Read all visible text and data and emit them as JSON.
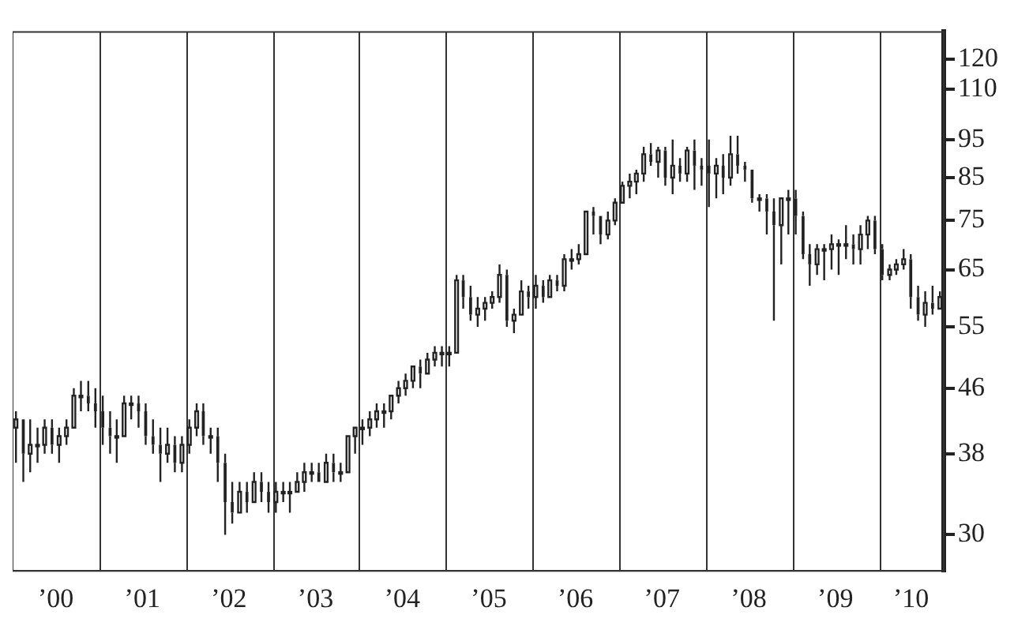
{
  "chart_data": {
    "type": "candlestick",
    "log": true,
    "grid": false,
    "x": [
      "2000-01-15",
      "2000-02-15",
      "2000-03-15",
      "2000-04-15",
      "2000-05-15",
      "2000-06-15",
      "2000-07-15",
      "2000-08-15",
      "2000-09-15",
      "2000-10-15",
      "2000-11-15",
      "2000-12-15",
      "2001-01-15",
      "2001-02-15",
      "2001-03-15",
      "2001-04-15",
      "2001-05-15",
      "2001-06-15",
      "2001-07-15",
      "2001-08-15",
      "2001-09-15",
      "2001-10-15",
      "2001-11-15",
      "2001-12-15",
      "2002-01-15",
      "2002-02-15",
      "2002-03-15",
      "2002-04-15",
      "2002-05-15",
      "2002-06-15",
      "2002-07-15",
      "2002-08-15",
      "2002-09-15",
      "2002-10-15",
      "2002-11-15",
      "2002-12-15",
      "2003-01-15",
      "2003-02-15",
      "2003-03-15",
      "2003-04-15",
      "2003-05-15",
      "2003-06-15",
      "2003-07-15",
      "2003-08-15",
      "2003-09-15",
      "2003-10-15",
      "2003-11-15",
      "2003-12-15",
      "2004-01-15",
      "2004-02-15",
      "2004-03-15",
      "2004-04-15",
      "2004-05-15",
      "2004-06-15",
      "2004-07-15",
      "2004-08-15",
      "2004-09-15",
      "2004-10-15",
      "2004-11-15",
      "2004-12-15",
      "2005-01-15",
      "2005-02-15",
      "2005-03-15",
      "2005-04-15",
      "2005-05-15",
      "2005-06-15",
      "2005-07-15",
      "2005-08-15",
      "2005-09-15",
      "2005-10-15",
      "2005-11-15",
      "2005-12-15",
      "2006-01-15",
      "2006-02-15",
      "2006-03-15",
      "2006-04-15",
      "2006-05-15",
      "2006-06-15",
      "2006-07-15",
      "2006-08-15",
      "2006-09-15",
      "2006-10-15",
      "2006-11-15",
      "2006-12-15",
      "2007-01-15",
      "2007-02-15",
      "2007-03-15",
      "2007-04-15",
      "2007-05-15",
      "2007-06-15",
      "2007-07-15",
      "2007-08-15",
      "2007-09-15",
      "2007-10-15",
      "2007-11-15",
      "2007-12-15",
      "2008-01-15",
      "2008-02-15",
      "2008-03-15",
      "2008-04-15",
      "2008-05-15",
      "2008-06-15",
      "2008-07-15",
      "2008-08-15",
      "2008-09-15",
      "2008-10-15",
      "2008-11-15",
      "2008-12-15",
      "2009-01-15",
      "2009-02-15",
      "2009-03-15",
      "2009-04-15",
      "2009-05-15",
      "2009-06-15",
      "2009-07-15",
      "2009-08-15",
      "2009-09-15",
      "2009-10-15",
      "2009-11-15",
      "2009-12-15",
      "2010-01-15",
      "2010-02-15",
      "2010-03-15",
      "2010-04-15",
      "2010-05-15",
      "2010-06-15",
      "2010-07-15",
      "2010-08-15",
      "2010-09-15"
    ],
    "ohlc": [
      [
        41,
        43,
        37,
        42
      ],
      [
        42,
        42,
        35,
        38
      ],
      [
        38,
        42,
        36,
        39
      ],
      [
        39,
        41,
        37,
        39
      ],
      [
        39,
        42,
        38,
        41
      ],
      [
        41,
        42,
        38,
        39
      ],
      [
        39,
        41,
        37,
        40
      ],
      [
        40,
        42,
        39,
        41
      ],
      [
        41,
        46,
        41,
        45
      ],
      [
        45,
        47,
        43,
        45
      ],
      [
        45,
        47,
        43,
        44
      ],
      [
        44,
        46,
        41,
        43
      ],
      [
        43,
        45,
        39,
        41
      ],
      [
        41,
        43,
        38,
        40
      ],
      [
        40,
        42,
        37,
        40
      ],
      [
        40,
        45,
        40,
        44
      ],
      [
        44,
        45,
        42,
        44
      ],
      [
        44,
        45,
        41,
        43
      ],
      [
        43,
        44,
        39,
        40
      ],
      [
        40,
        42,
        38,
        39
      ],
      [
        39,
        41,
        35,
        38
      ],
      [
        38,
        41,
        37,
        39
      ],
      [
        39,
        40,
        36,
        37
      ],
      [
        37,
        40,
        36,
        39
      ],
      [
        39,
        42,
        38,
        41
      ],
      [
        41,
        44,
        40,
        43
      ],
      [
        43,
        44,
        39,
        40
      ],
      [
        40,
        41,
        38,
        40
      ],
      [
        40,
        41,
        35,
        37
      ],
      [
        37,
        38,
        30,
        33
      ],
      [
        33,
        35,
        31,
        32
      ],
      [
        32,
        35,
        32,
        34
      ],
      [
        34,
        35,
        32,
        33
      ],
      [
        33,
        36,
        33,
        35
      ],
      [
        35,
        36,
        33,
        34
      ],
      [
        34,
        35,
        32,
        33
      ],
      [
        33,
        35,
        32,
        34
      ],
      [
        34,
        35,
        33,
        34
      ],
      [
        34,
        35,
        32,
        34
      ],
      [
        34,
        36,
        34,
        35
      ],
      [
        35,
        37,
        34,
        36
      ],
      [
        36,
        37,
        35,
        36
      ],
      [
        36,
        37,
        35,
        35
      ],
      [
        35,
        38,
        35,
        37
      ],
      [
        37,
        38,
        35,
        36
      ],
      [
        36,
        37,
        35,
        36
      ],
      [
        36,
        40,
        36,
        40
      ],
      [
        40,
        41,
        38,
        41
      ],
      [
        41,
        42,
        39,
        41
      ],
      [
        41,
        43,
        40,
        42
      ],
      [
        42,
        44,
        41,
        43
      ],
      [
        43,
        44,
        41,
        43
      ],
      [
        43,
        45,
        42,
        45
      ],
      [
        45,
        47,
        44,
        46
      ],
      [
        46,
        48,
        45,
        47
      ],
      [
        47,
        49,
        46,
        49
      ],
      [
        49,
        50,
        46,
        48
      ],
      [
        48,
        51,
        48,
        50
      ],
      [
        50,
        52,
        49,
        51
      ],
      [
        51,
        52,
        49,
        51
      ],
      [
        51,
        52,
        49,
        51
      ],
      [
        51,
        64,
        51,
        63
      ],
      [
        63,
        64,
        58,
        60
      ],
      [
        60,
        62,
        56,
        57
      ],
      [
        57,
        60,
        55,
        58
      ],
      [
        58,
        60,
        56,
        59
      ],
      [
        59,
        61,
        58,
        60
      ],
      [
        60,
        66,
        59,
        64
      ],
      [
        64,
        65,
        55,
        56
      ],
      [
        56,
        58,
        54,
        57
      ],
      [
        57,
        63,
        57,
        61
      ],
      [
        61,
        62,
        58,
        60
      ],
      [
        60,
        64,
        58,
        62
      ],
      [
        62,
        63,
        59,
        60
      ],
      [
        60,
        64,
        60,
        63
      ],
      [
        63,
        64,
        61,
        62
      ],
      [
        62,
        68,
        61,
        67
      ],
      [
        67,
        69,
        65,
        67
      ],
      [
        67,
        70,
        66,
        68
      ],
      [
        68,
        77,
        68,
        77
      ],
      [
        77,
        78,
        72,
        76
      ],
      [
        76,
        76,
        70,
        72
      ],
      [
        72,
        77,
        71,
        75
      ],
      [
        75,
        80,
        74,
        79
      ],
      [
        79,
        84,
        79,
        83
      ],
      [
        83,
        86,
        80,
        84
      ],
      [
        84,
        87,
        81,
        86
      ],
      [
        86,
        93,
        84,
        91
      ],
      [
        91,
        94,
        88,
        89
      ],
      [
        89,
        93,
        85,
        92
      ],
      [
        92,
        93,
        83,
        85
      ],
      [
        85,
        95,
        81,
        88
      ],
      [
        88,
        90,
        84,
        86
      ],
      [
        86,
        93,
        84,
        92
      ],
      [
        92,
        95,
        82,
        88
      ],
      [
        88,
        90,
        83,
        87
      ],
      [
        88,
        95,
        78,
        86
      ],
      [
        86,
        90,
        80,
        88
      ],
      [
        88,
        91,
        81,
        85
      ],
      [
        85,
        96,
        83,
        91
      ],
      [
        91,
        96,
        86,
        88
      ],
      [
        88,
        89,
        84,
        87
      ],
      [
        87,
        87,
        79,
        80
      ],
      [
        80,
        81,
        77,
        80
      ],
      [
        80,
        81,
        72,
        77
      ],
      [
        77,
        80,
        56,
        74
      ],
      [
        74,
        80,
        66,
        80
      ],
      [
        80,
        82,
        72,
        80
      ],
      [
        80,
        82,
        72,
        76
      ],
      [
        76,
        77,
        67,
        68
      ],
      [
        68,
        70,
        62,
        66
      ],
      [
        66,
        70,
        64,
        69
      ],
      [
        69,
        70,
        63,
        69
      ],
      [
        69,
        72,
        65,
        70
      ],
      [
        70,
        71,
        64,
        70
      ],
      [
        70,
        74,
        67,
        70
      ],
      [
        70,
        72,
        66,
        69
      ],
      [
        69,
        74,
        66,
        72
      ],
      [
        72,
        76,
        69,
        75
      ],
      [
        75,
        76,
        68,
        69
      ],
      [
        69,
        70,
        63,
        64
      ],
      [
        64,
        66,
        63,
        65
      ],
      [
        65,
        67,
        64,
        66
      ],
      [
        66,
        69,
        65,
        67
      ],
      [
        67,
        68,
        58,
        60
      ],
      [
        60,
        62,
        56,
        57
      ],
      [
        57,
        61,
        55,
        59
      ],
      [
        59,
        62,
        57,
        58
      ],
      [
        58,
        61,
        58,
        60
      ]
    ],
    "color": "#222222",
    "xlim": [
      "2000-01-01",
      "2010-10-01"
    ],
    "xticks": [
      {
        "value": "2000-07-01",
        "label": "’00"
      },
      {
        "value": "2001-07-01",
        "label": "’01"
      },
      {
        "value": "2002-07-01",
        "label": "’02"
      },
      {
        "value": "2003-07-01",
        "label": "’03"
      },
      {
        "value": "2004-07-01",
        "label": "’04"
      },
      {
        "value": "2005-07-01",
        "label": "’05"
      },
      {
        "value": "2006-07-01",
        "label": "’06"
      },
      {
        "value": "2007-07-01",
        "label": "’07"
      },
      {
        "value": "2008-07-01",
        "label": "’08"
      },
      {
        "value": "2009-07-01",
        "label": "’09"
      },
      {
        "value": "2010-05-16",
        "label": "’10"
      }
    ],
    "ylim": [
      27,
      130
    ],
    "yticks": [
      30,
      38,
      46,
      55,
      65,
      75,
      85,
      95,
      110,
      120
    ],
    "ref_lines": [
      {
        "axis": "x",
        "value": "2001-01-01",
        "color": "#333333"
      },
      {
        "axis": "x",
        "value": "2002-01-01",
        "color": "#333333"
      },
      {
        "axis": "x",
        "value": "2003-01-01",
        "color": "#333333"
      },
      {
        "axis": "x",
        "value": "2004-01-01",
        "color": "#333333"
      },
      {
        "axis": "x",
        "value": "2005-01-01",
        "color": "#333333"
      },
      {
        "axis": "x",
        "value": "2006-01-01",
        "color": "#333333"
      },
      {
        "axis": "x",
        "value": "2007-01-01",
        "color": "#333333"
      },
      {
        "axis": "x",
        "value": "2008-01-01",
        "color": "#333333"
      },
      {
        "axis": "x",
        "value": "2009-01-01",
        "color": "#333333"
      },
      {
        "axis": "x",
        "value": "2010-01-01",
        "color": "#333333"
      }
    ]
  }
}
